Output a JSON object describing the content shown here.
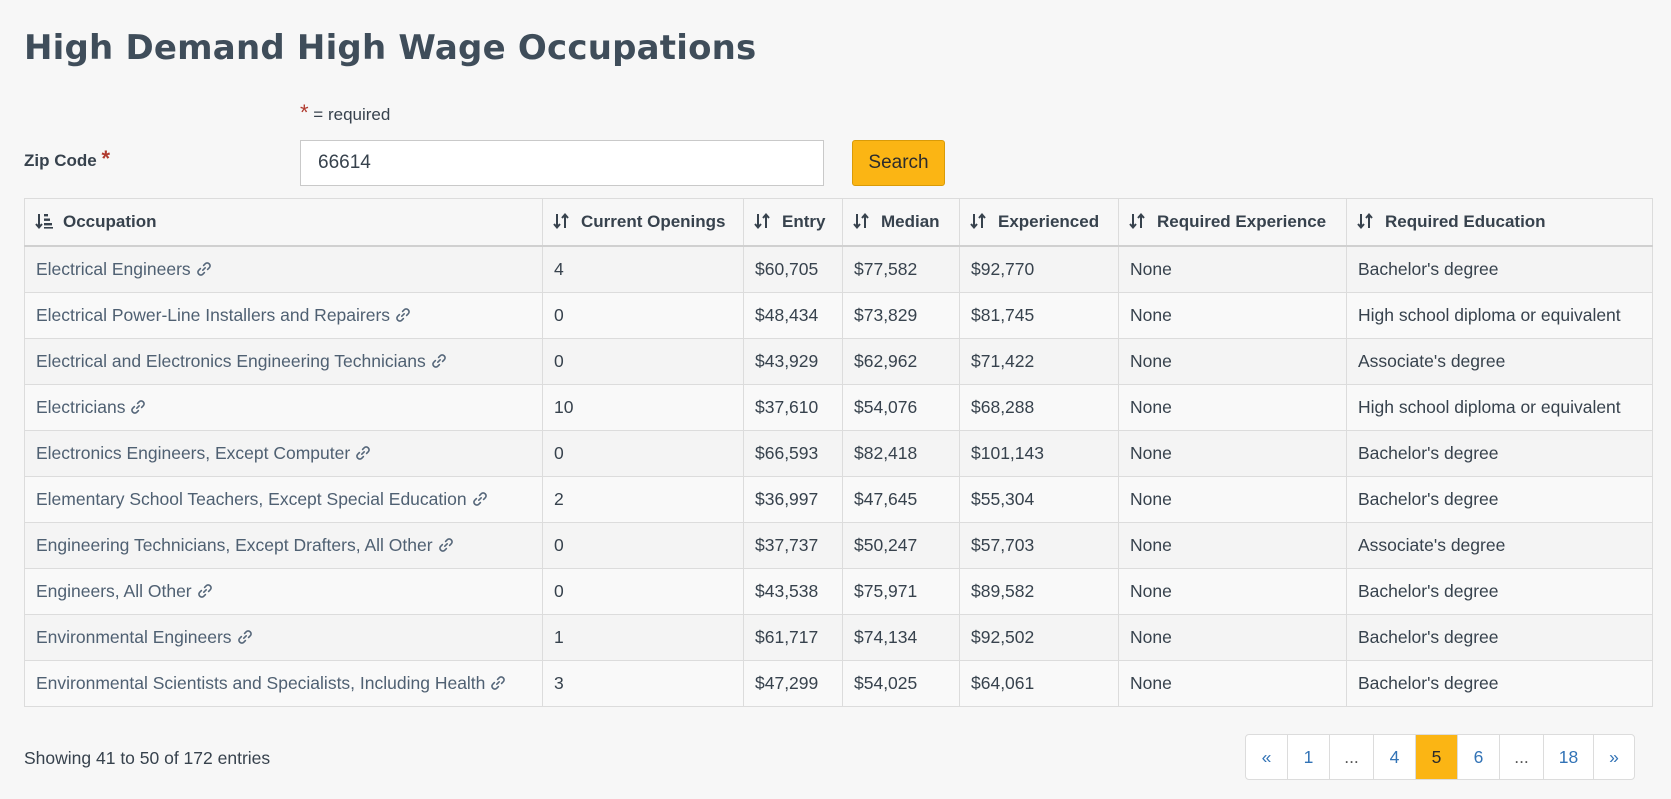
{
  "title": "High Demand High Wage Occupations",
  "required_note": {
    "star": "*",
    "text": "= required"
  },
  "zip": {
    "label": "Zip Code",
    "star": "*",
    "value": "66614"
  },
  "search_label": "Search",
  "columns": [
    "Occupation",
    "Current Openings",
    "Entry",
    "Median",
    "Experienced",
    "Required Experience",
    "Required Education"
  ],
  "rows": [
    {
      "occupation": "Electrical Engineers",
      "openings": "4",
      "entry": "$60,705",
      "median": "$77,582",
      "experienced": "$92,770",
      "experience": "None",
      "education": "Bachelor's degree"
    },
    {
      "occupation": "Electrical Power-Line Installers and Repairers",
      "openings": "0",
      "entry": "$48,434",
      "median": "$73,829",
      "experienced": "$81,745",
      "experience": "None",
      "education": "High school diploma or equivalent"
    },
    {
      "occupation": "Electrical and Electronics Engineering Technicians",
      "openings": "0",
      "entry": "$43,929",
      "median": "$62,962",
      "experienced": "$71,422",
      "experience": "None",
      "education": "Associate's degree"
    },
    {
      "occupation": "Electricians",
      "openings": "10",
      "entry": "$37,610",
      "median": "$54,076",
      "experienced": "$68,288",
      "experience": "None",
      "education": "High school diploma or equivalent"
    },
    {
      "occupation": "Electronics Engineers, Except Computer",
      "openings": "0",
      "entry": "$66,593",
      "median": "$82,418",
      "experienced": "$101,143",
      "experience": "None",
      "education": "Bachelor's degree"
    },
    {
      "occupation": "Elementary School Teachers, Except Special Education",
      "openings": "2",
      "entry": "$36,997",
      "median": "$47,645",
      "experienced": "$55,304",
      "experience": "None",
      "education": "Bachelor's degree"
    },
    {
      "occupation": "Engineering Technicians, Except Drafters, All Other",
      "openings": "0",
      "entry": "$37,737",
      "median": "$50,247",
      "experienced": "$57,703",
      "experience": "None",
      "education": "Associate's degree"
    },
    {
      "occupation": "Engineers, All Other",
      "openings": "0",
      "entry": "$43,538",
      "median": "$75,971",
      "experienced": "$89,582",
      "experience": "None",
      "education": "Bachelor's degree"
    },
    {
      "occupation": "Environmental Engineers",
      "openings": "1",
      "entry": "$61,717",
      "median": "$74,134",
      "experienced": "$92,502",
      "experience": "None",
      "education": "Bachelor's degree"
    },
    {
      "occupation": "Environmental Scientists and Specialists, Including Health",
      "openings": "3",
      "entry": "$47,299",
      "median": "$54,025",
      "experienced": "$64,061",
      "experience": "None",
      "education": "Bachelor's degree"
    }
  ],
  "showing": "Showing 41 to 50 of 172 entries",
  "pagination": [
    "«",
    "1",
    "...",
    "4",
    "5",
    "6",
    "...",
    "18",
    "»"
  ],
  "pagination_active": "5",
  "icons": {
    "sort": "sort-arrows-icon",
    "link": "link-icon"
  },
  "colors": {
    "accent": "#fbb514",
    "link": "#3273b6",
    "required": "#b03a2e"
  }
}
